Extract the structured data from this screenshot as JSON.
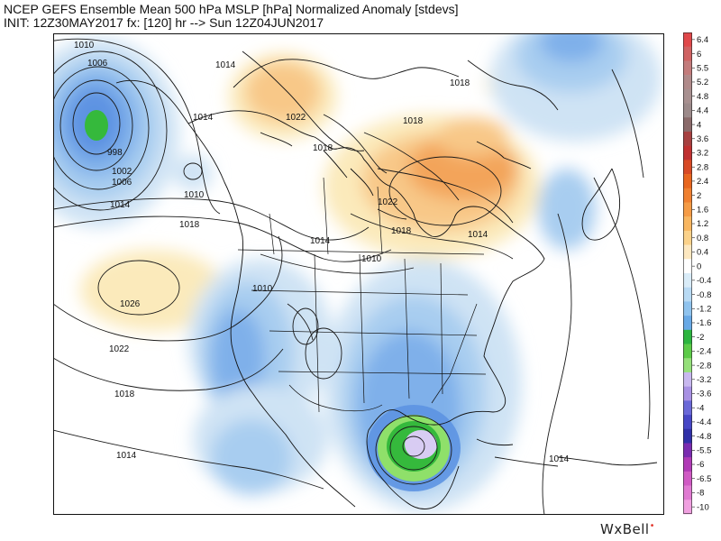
{
  "header": {
    "line1": "NCEP GEFS Ensemble Mean 500 hPa MSLP [hPa] Normalized Anomaly [stdevs]",
    "line2": "INIT: 12Z30MAY2017 fx: [120] hr --> Sun 12Z04JUN2017"
  },
  "brand": {
    "text": "WxBell",
    "dot": "•"
  },
  "map": {
    "isobar_labels": [
      "1010",
      "1006",
      "1014",
      "1014",
      "998",
      "1002",
      "1006",
      "1010",
      "1014",
      "1018",
      "1022",
      "1018",
      "1018",
      "1018",
      "1022",
      "1018",
      "1014",
      "1014",
      "1010",
      "1010",
      "1026",
      "1022",
      "1018",
      "1014",
      "1014"
    ],
    "colors": {
      "neg_light": "#cfe3f4",
      "neg_mid": "#a8cdf0",
      "neg_deep": "#7fb0ea",
      "neg_strong": "#5d93e2",
      "green_outer": "#8fe06a",
      "green_inner": "#35b93c",
      "lav": "#d8ccf3",
      "pos_light": "#fbeabb",
      "pos_mid": "#f8c888",
      "pos_deep": "#f3a45a"
    }
  },
  "colorbar": {
    "ticks": [
      "6.4",
      "6",
      "5.5",
      "5.2",
      "4.8",
      "4.4",
      "4",
      "3.6",
      "3.2",
      "2.8",
      "2.4",
      "2",
      "1.6",
      "1.2",
      "0.8",
      "0.4",
      "0",
      "-0.4",
      "-0.8",
      "-1.2",
      "-1.6",
      "-2",
      "-2.4",
      "-2.8",
      "-3.2",
      "-3.6",
      "-4",
      "-4.4",
      "-4.8",
      "-5.5",
      "-6",
      "-6.5",
      "-8",
      "-10"
    ],
    "colors": [
      "#e0484a",
      "#d06262",
      "#c37c7c",
      "#b08a8a",
      "#a89090",
      "#9c8a8a",
      "#8a6a6a",
      "#a64040",
      "#c03030",
      "#d84a25",
      "#e8661e",
      "#f08030",
      "#f59b45",
      "#f8b660",
      "#fbd28a",
      "#fde8c0",
      "#ffffff",
      "#d9ecf8",
      "#b8daf4",
      "#8fc3ee",
      "#68a9e6",
      "#2cb53f",
      "#5ccb48",
      "#95e07a",
      "#c8b8ef",
      "#a891e4",
      "#6a68d8",
      "#4747c6",
      "#3030a8",
      "#7a2cb0",
      "#b03ab6",
      "#d05ac4",
      "#e07ad2",
      "#f0a0e0"
    ]
  }
}
